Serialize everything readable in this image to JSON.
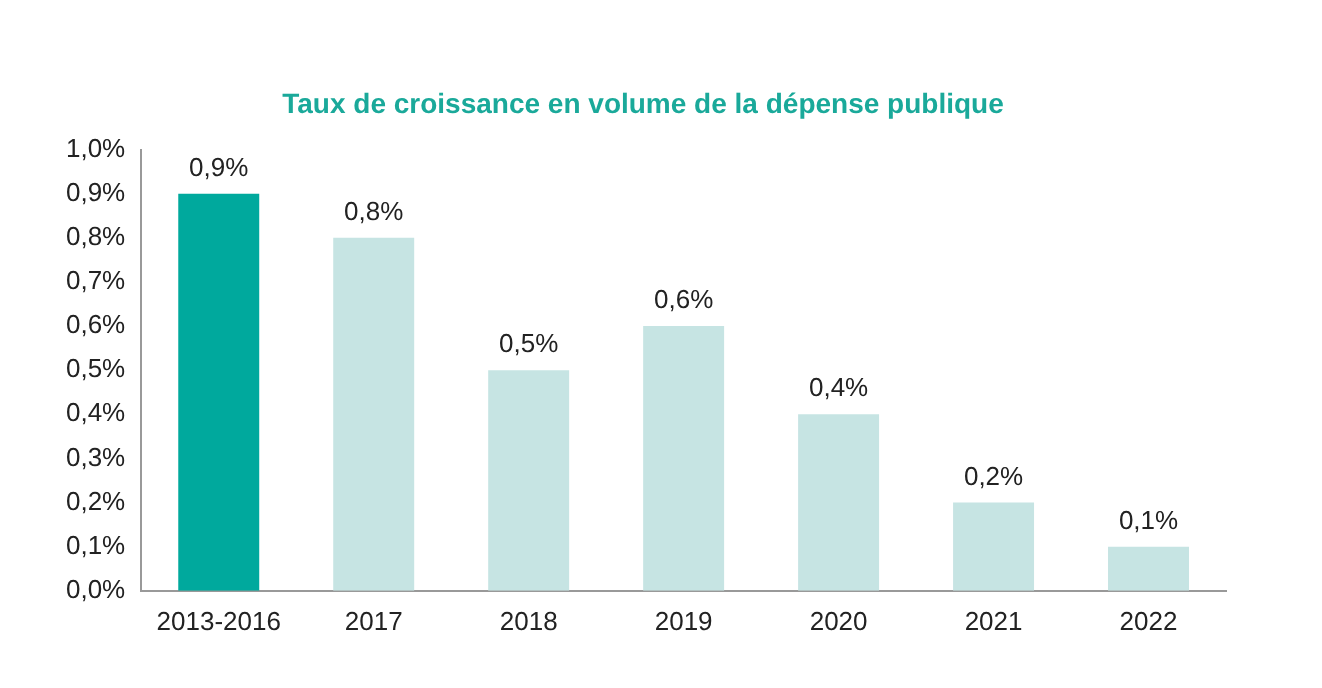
{
  "chart_data": {
    "type": "bar",
    "title": "Taux de croissance en volume de la dépense publique",
    "categories": [
      "2013-2016",
      "2017",
      "2018",
      "2019",
      "2020",
      "2021",
      "2022"
    ],
    "values": [
      0.9,
      0.8,
      0.5,
      0.6,
      0.4,
      0.2,
      0.1
    ],
    "colors": [
      "#00a99d",
      "#c6e4e3",
      "#c6e4e3",
      "#c6e4e3",
      "#c6e4e3",
      "#c6e4e3",
      "#c6e4e3"
    ],
    "value_labels": [
      "0,9%",
      "0,8%",
      "0,5%",
      "0,6%",
      "0,4%",
      "0,2%",
      "0,1%"
    ],
    "ylim": [
      0,
      1.0
    ],
    "yticks": [
      {
        "value": 0,
        "label": "0,0%"
      },
      {
        "value": 0.1,
        "label": "0,1%"
      },
      {
        "value": 0.2,
        "label": "0,2%"
      },
      {
        "value": 0.3,
        "label": "0,3%"
      },
      {
        "value": 0.4,
        "label": "0,4%"
      },
      {
        "value": 0.5,
        "label": "0,5%"
      },
      {
        "value": 0.6,
        "label": "0,6%"
      },
      {
        "value": 0.7,
        "label": "0,7%"
      },
      {
        "value": 0.8,
        "label": "0,8%"
      },
      {
        "value": 0.9,
        "label": "0,9%"
      },
      {
        "value": 1.0,
        "label": "1,0%"
      }
    ],
    "grid": false,
    "legend": false
  }
}
